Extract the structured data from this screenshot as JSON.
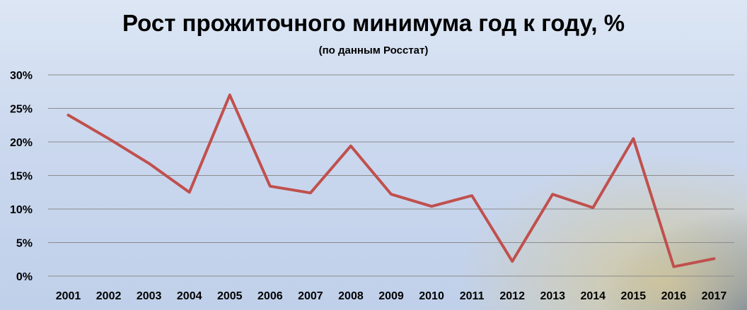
{
  "chart_data": {
    "type": "line",
    "title": "Рост прожиточного минимума год к году, %",
    "subtitle": "(по данным Росстат)",
    "xlabel": "",
    "ylabel": "",
    "categories": [
      "2001",
      "2002",
      "2003",
      "2004",
      "2005",
      "2006",
      "2007",
      "2008",
      "2009",
      "2010",
      "2011",
      "2012",
      "2013",
      "2014",
      "2015",
      "2016",
      "2017"
    ],
    "series": [
      {
        "values": [
          24.0,
          20.5,
          16.8,
          12.5,
          27.0,
          13.4,
          12.4,
          19.4,
          12.2,
          10.4,
          12.0,
          2.2,
          12.2,
          10.2,
          20.5,
          1.4,
          2.6
        ]
      }
    ],
    "ylim": [
      0,
      30
    ],
    "yticks": [
      0,
      5,
      10,
      15,
      20,
      25,
      30
    ],
    "ytick_labels": [
      "0%",
      "5%",
      "10%",
      "15%",
      "20%",
      "25%",
      "30%"
    ],
    "grid": true,
    "legend": "none",
    "colors": {
      "line": "#c0504d",
      "grid": "#8c8c8c"
    }
  }
}
